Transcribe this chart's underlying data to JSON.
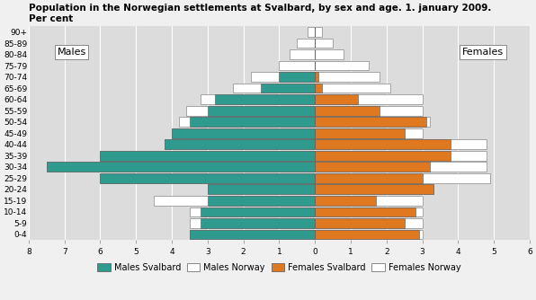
{
  "title": "Population in the Norwegian settlements at Svalbard, by sex and age. 1. january 2009.\nPer cent",
  "age_groups": [
    "0-4",
    "5-9",
    "10-14",
    "15-19",
    "20-24",
    "25-29",
    "30-34",
    "35-39",
    "40-44",
    "45-49",
    "50-54",
    "55-59",
    "60-64",
    "65-69",
    "70-74",
    "75-79",
    "80-84",
    "85-89",
    "90+"
  ],
  "males_svalbard": [
    3.5,
    3.2,
    3.2,
    3.0,
    3.0,
    6.0,
    7.5,
    6.0,
    4.2,
    4.0,
    3.5,
    3.0,
    2.8,
    1.5,
    1.0,
    0.0,
    0.0,
    0.0,
    0.0
  ],
  "males_norway": [
    3.5,
    3.5,
    3.5,
    4.5,
    3.0,
    6.0,
    7.5,
    6.0,
    4.2,
    4.0,
    3.8,
    3.6,
    3.2,
    2.3,
    1.8,
    1.0,
    0.7,
    0.5,
    0.2
  ],
  "females_svalbard": [
    2.9,
    2.5,
    2.8,
    1.7,
    3.3,
    3.0,
    3.2,
    3.8,
    3.8,
    2.5,
    3.1,
    1.8,
    1.2,
    0.2,
    0.1,
    0.0,
    0.0,
    0.0,
    0.0
  ],
  "females_norway": [
    3.0,
    3.0,
    3.0,
    3.0,
    3.3,
    4.9,
    4.8,
    4.8,
    4.8,
    3.0,
    3.2,
    3.0,
    3.0,
    2.1,
    1.8,
    1.5,
    0.8,
    0.5,
    0.2
  ],
  "color_males_svalbard": "#2e9b8e",
  "color_females_svalbard": "#e07820",
  "color_norway": "#ffffff",
  "xlim_left": 8,
  "xlim_right": 6,
  "bg_color": "#dcdcdc",
  "fig_bg_color": "#f0f0f0"
}
